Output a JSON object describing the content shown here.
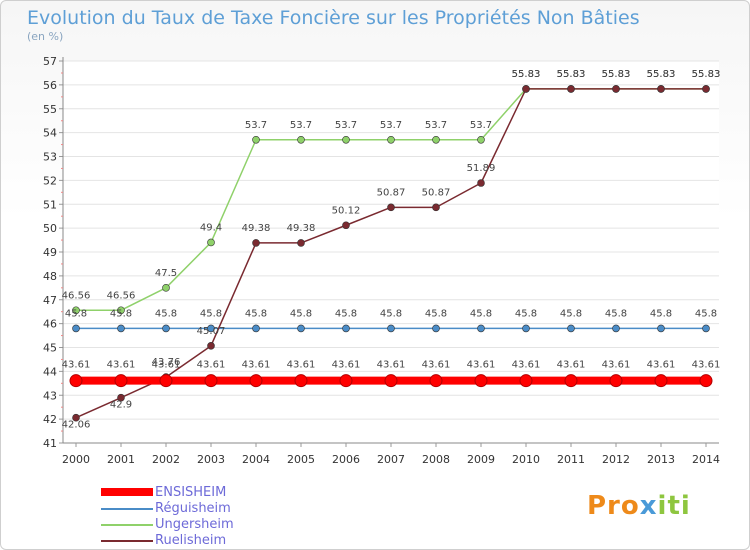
{
  "title": "Evolution du Taux de Taxe Foncière sur les Propriétés Non Bâties",
  "unit_label": "(en %)",
  "logo": {
    "part1": "Pro",
    "part2": "x",
    "part3": "iti"
  },
  "chart_data": {
    "type": "line",
    "title": "Evolution du Taux de Taxe Foncière sur les Propriétés Non Bâties",
    "ylabel": "(en %)",
    "xlabel": "",
    "ylim": [
      41,
      57
    ],
    "yticks": [
      41,
      42,
      43,
      44,
      45,
      46,
      47,
      48,
      49,
      50,
      51,
      52,
      53,
      54,
      55,
      56,
      57
    ],
    "categories": [
      "2000",
      "2001",
      "2002",
      "2003",
      "2004",
      "2005",
      "2006",
      "2007",
      "2008",
      "2009",
      "2010",
      "2011",
      "2012",
      "2013",
      "2014"
    ],
    "series": [
      {
        "name": "ENSISHEIM",
        "color": "#ff0000",
        "values": [
          43.61,
          43.61,
          43.61,
          43.61,
          43.61,
          43.61,
          43.61,
          43.61,
          43.61,
          43.61,
          43.61,
          43.61,
          43.61,
          43.61,
          43.61
        ],
        "labels": [
          "43.61",
          "43.61",
          "43.61",
          "43.61",
          "43.61",
          "43.61",
          "43.61",
          "43.61",
          "43.61",
          "43.61",
          "43.61",
          "43.61",
          "43.61",
          "43.61",
          "43.61"
        ]
      },
      {
        "name": "Réguisheim",
        "color": "#4a8cc7",
        "values": [
          45.8,
          45.8,
          45.8,
          45.8,
          45.8,
          45.8,
          45.8,
          45.8,
          45.8,
          45.8,
          45.8,
          45.8,
          45.8,
          45.8,
          45.8
        ],
        "labels": [
          "45.8",
          "45.8",
          "45.8",
          "45.8",
          "45.8",
          "45.8",
          "45.8",
          "45.8",
          "45.8",
          "45.8",
          "45.8",
          "45.8",
          "45.8",
          "45.8",
          "45.8"
        ]
      },
      {
        "name": "Ungersheim",
        "color": "#8fd16a",
        "values": [
          46.56,
          46.56,
          47.5,
          49.4,
          53.7,
          53.7,
          53.7,
          53.7,
          53.7,
          53.7,
          55.83,
          55.83,
          55.83,
          55.83,
          55.83
        ],
        "labels": [
          "46.56",
          "46.56",
          "47.5",
          "49.4",
          "53.7",
          "53.7",
          "53.7",
          "53.7",
          "53.7",
          "53.7",
          "55.83",
          "55.83",
          "55.83",
          "55.83",
          "55.83"
        ]
      },
      {
        "name": "Ruelisheim",
        "color": "#7a2a30",
        "values": [
          42.06,
          42.9,
          43.76,
          45.07,
          49.38,
          49.38,
          50.12,
          50.87,
          50.87,
          51.89,
          55.83,
          55.83,
          55.83,
          55.83,
          55.83
        ],
        "labels": [
          "42.06",
          "42.9",
          "43.76",
          "45.07",
          "49.38",
          "49.38",
          "50.12",
          "50.87",
          "50.87",
          "51.89",
          "55.83",
          "55.83",
          "55.83",
          "55.83",
          "55.83"
        ]
      }
    ]
  }
}
